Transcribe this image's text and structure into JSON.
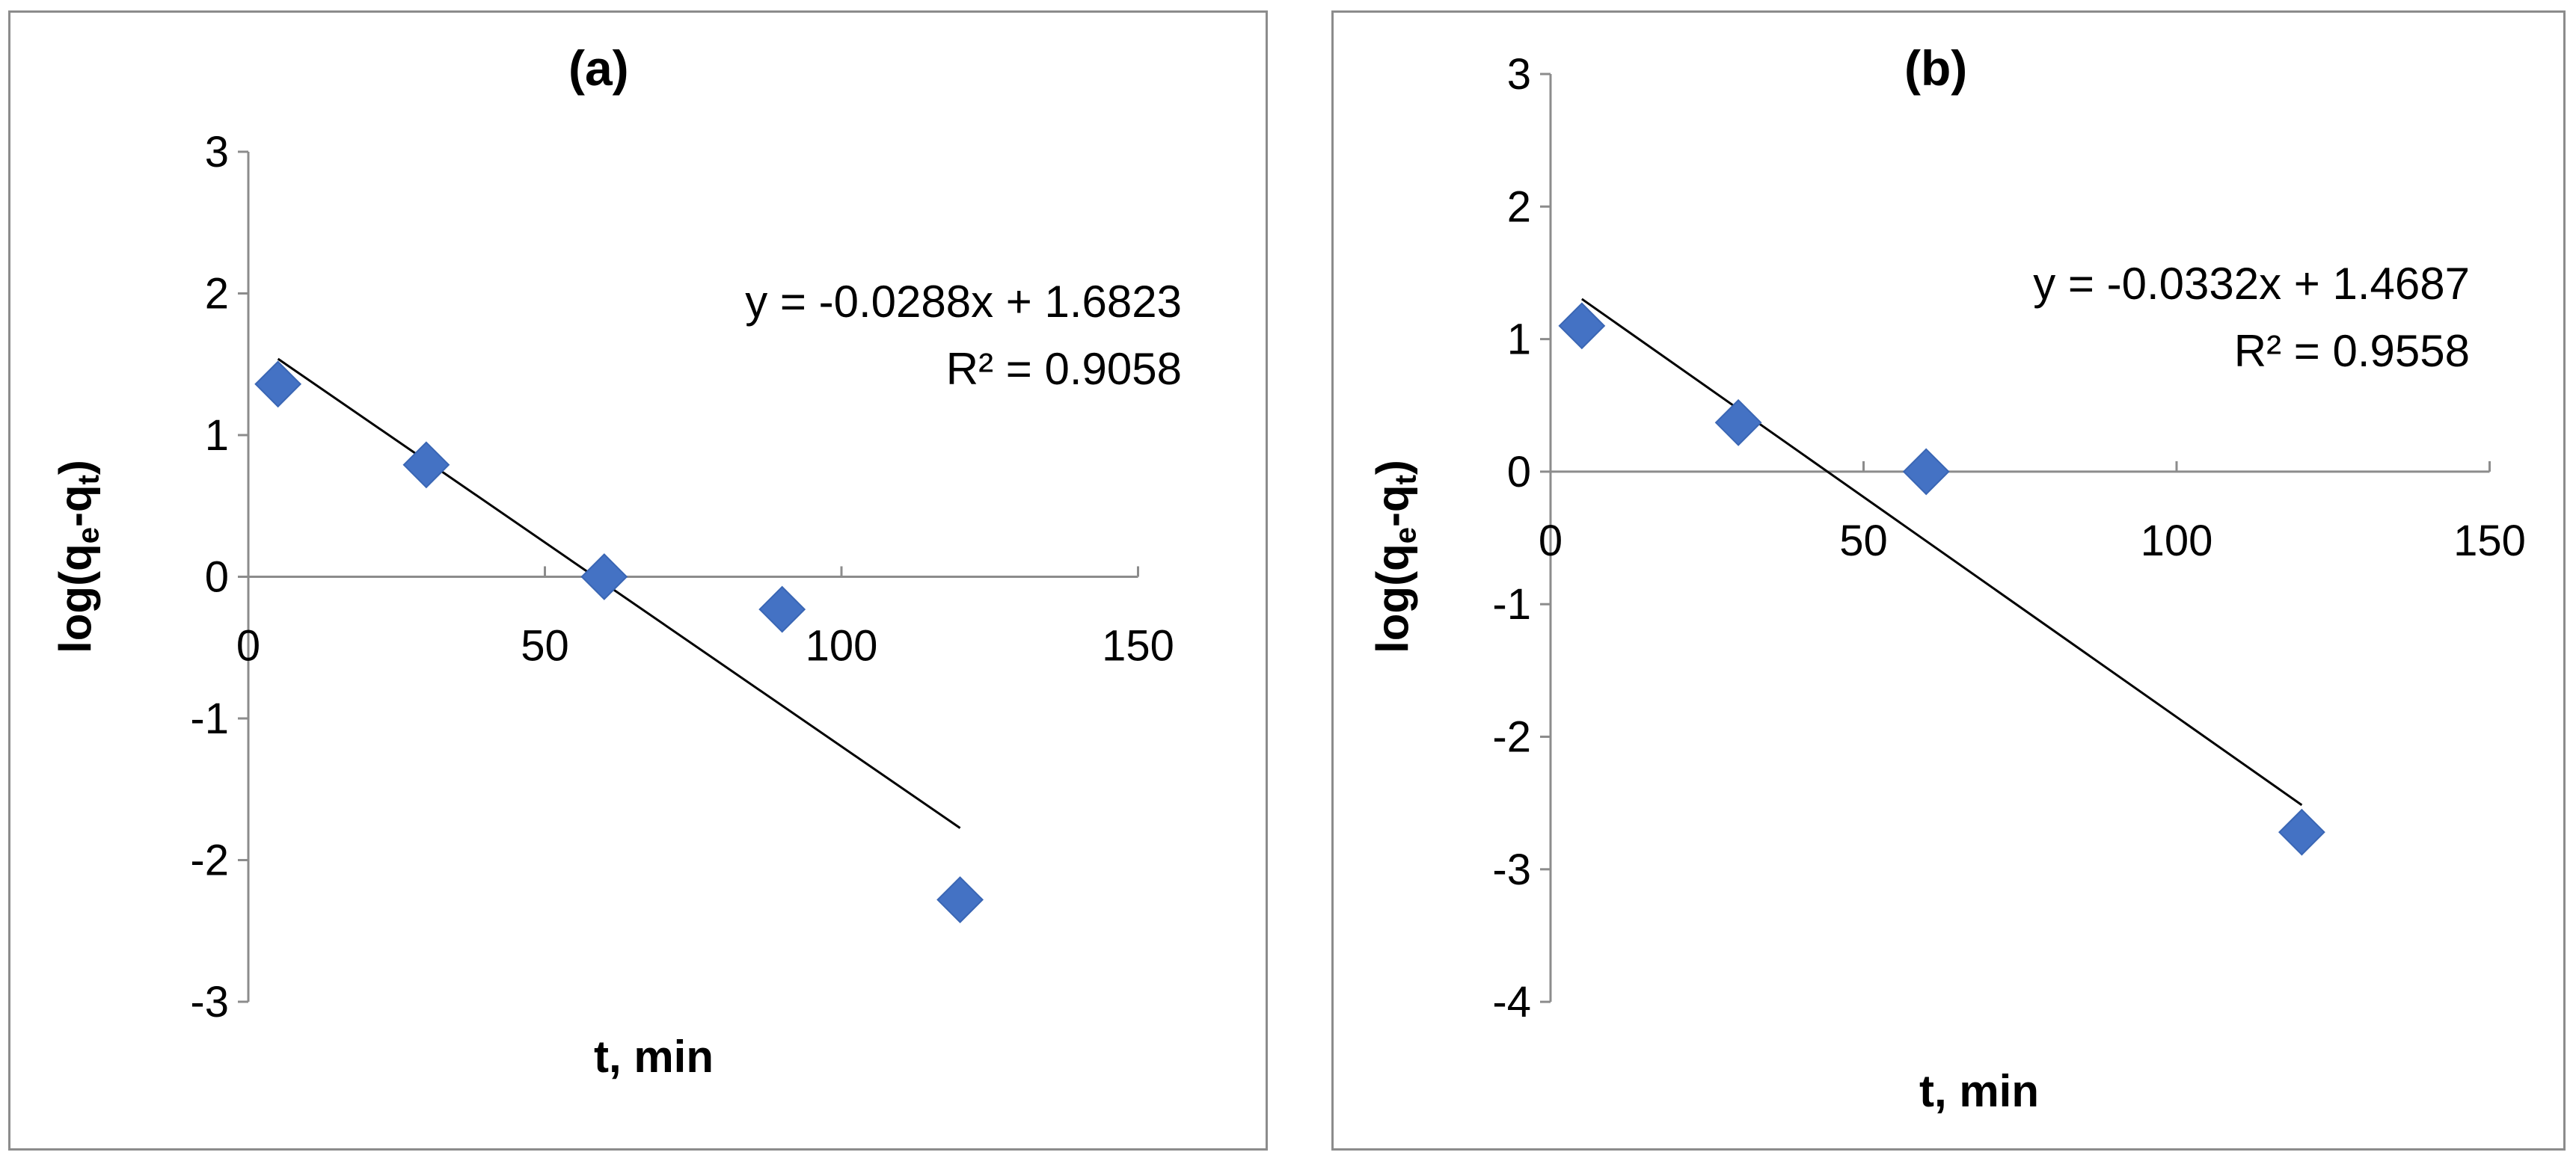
{
  "chart_data": [
    {
      "type": "scatter",
      "title": "(a)",
      "xlabel": "t, min",
      "ylabel": {
        "prefix": "log(q",
        "sub1": "e",
        "mid": "-q",
        "sub2": "t",
        "suffix": ")"
      },
      "xlim": [
        0,
        150
      ],
      "ylim": [
        -3,
        3
      ],
      "xticks": [
        0,
        50,
        100,
        150
      ],
      "yticks": [
        3,
        2,
        1,
        0,
        -1,
        -2,
        -3
      ],
      "grid": false,
      "marker": "diamond",
      "color": "#4472c4",
      "points": [
        {
          "x": 5,
          "y": 1.36
        },
        {
          "x": 30,
          "y": 0.79
        },
        {
          "x": 60,
          "y": 0.0
        },
        {
          "x": 90,
          "y": -0.23
        },
        {
          "x": 120,
          "y": -2.28
        }
      ],
      "trendline": {
        "slope": -0.0288,
        "intercept": 1.6823,
        "x_range": [
          5,
          120
        ],
        "color": "#000000"
      },
      "equation": "y = -0.0288x + 1.6823",
      "r_squared": "R² = 0.9058"
    },
    {
      "type": "scatter",
      "title": "(b)",
      "xlabel": "t, min",
      "ylabel": {
        "prefix": "log(q",
        "sub1": "e",
        "mid": "-q",
        "sub2": "t",
        "suffix": ")"
      },
      "xlim": [
        0,
        150
      ],
      "ylim": [
        -4,
        3
      ],
      "xticks": [
        0,
        50,
        100,
        150
      ],
      "yticks": [
        3,
        2,
        1,
        0,
        -1,
        -2,
        -3,
        -4
      ],
      "grid": false,
      "marker": "diamond",
      "color": "#4472c4",
      "points": [
        {
          "x": 5,
          "y": 1.1
        },
        {
          "x": 30,
          "y": 0.37
        },
        {
          "x": 60,
          "y": 0.0
        },
        {
          "x": 120,
          "y": -2.72
        }
      ],
      "trendline": {
        "slope": -0.0332,
        "intercept": 1.4687,
        "x_range": [
          5,
          120
        ],
        "color": "#000000"
      },
      "equation": "y = -0.0332x + 1.4687",
      "r_squared": "R² = 0.9558"
    }
  ]
}
